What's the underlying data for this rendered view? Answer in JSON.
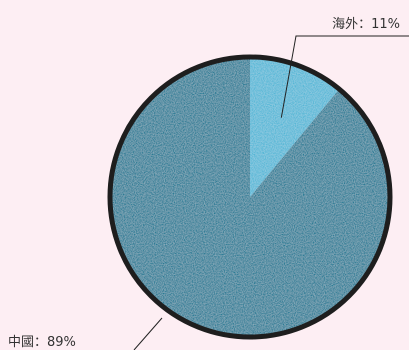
{
  "chart_data": {
    "type": "pie",
    "title": "",
    "categories": [
      "海外",
      "中國"
    ],
    "values": [
      11,
      89
    ],
    "labels": [
      "海外：11%",
      "中國：89%"
    ],
    "colors": [
      "#4fb6d6",
      "#1a7893"
    ],
    "outline_color": "#1e1e1e",
    "legend": "none"
  }
}
